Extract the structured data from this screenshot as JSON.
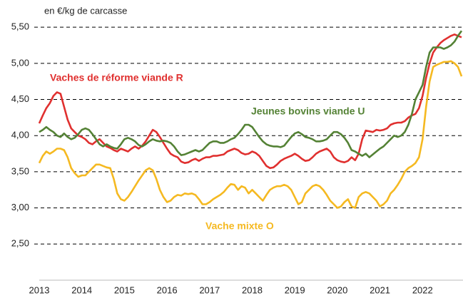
{
  "chart_data": {
    "type": "line",
    "y_label": "en €/kg de carcasse",
    "categories": [
      "2013",
      null,
      null,
      null,
      null,
      null,
      null,
      null,
      null,
      null,
      null,
      null,
      "2014",
      null,
      null,
      null,
      null,
      null,
      null,
      null,
      null,
      null,
      null,
      null,
      "2015",
      null,
      null,
      null,
      null,
      null,
      null,
      null,
      null,
      null,
      null,
      null,
      "2016",
      null,
      null,
      null,
      null,
      null,
      null,
      null,
      null,
      null,
      null,
      null,
      "2017",
      null,
      null,
      null,
      null,
      null,
      null,
      null,
      null,
      null,
      null,
      null,
      "2018",
      null,
      null,
      null,
      null,
      null,
      null,
      null,
      null,
      null,
      null,
      null,
      "2019",
      null,
      null,
      null,
      null,
      null,
      null,
      null,
      null,
      null,
      null,
      null,
      "2020",
      null,
      null,
      null,
      null,
      null,
      null,
      null,
      null,
      null,
      null,
      null,
      "2021",
      null,
      null,
      null,
      null,
      null,
      null,
      null,
      null,
      null,
      null,
      null,
      "2022",
      null,
      null,
      null,
      null,
      null,
      null,
      null,
      null,
      null,
      null,
      null
    ],
    "ylim": [
      2,
      5.6
    ],
    "yticks": [
      {
        "value": 2.5,
        "label": "2,50"
      },
      {
        "value": 3,
        "label": "3,00"
      },
      {
        "value": 3.5,
        "label": "3,50"
      },
      {
        "value": 4,
        "label": "4,00"
      },
      {
        "value": 4.5,
        "label": "4,50"
      },
      {
        "value": 5,
        "label": "5,00"
      },
      {
        "value": 5.5,
        "label": "5,50"
      }
    ],
    "grid": true,
    "series": [
      {
        "name": "Vaches de réforme viande R",
        "color": "#e0302f",
        "values": [
          4.17,
          4.28,
          4.38,
          4.45,
          4.55,
          4.6,
          4.58,
          4.4,
          4.22,
          4.1,
          4.05,
          4.0,
          3.98,
          3.95,
          3.9,
          3.88,
          3.92,
          3.95,
          3.9,
          3.85,
          3.83,
          3.8,
          3.78,
          3.82,
          3.8,
          3.78,
          3.82,
          3.85,
          3.82,
          3.86,
          3.92,
          4.0,
          4.08,
          4.05,
          3.98,
          3.9,
          3.82,
          3.75,
          3.72,
          3.7,
          3.64,
          3.62,
          3.63,
          3.66,
          3.68,
          3.65,
          3.68,
          3.7,
          3.7,
          3.72,
          3.72,
          3.73,
          3.74,
          3.78,
          3.8,
          3.82,
          3.8,
          3.76,
          3.74,
          3.75,
          3.78,
          3.76,
          3.72,
          3.65,
          3.58,
          3.55,
          3.56,
          3.6,
          3.65,
          3.68,
          3.7,
          3.72,
          3.75,
          3.72,
          3.68,
          3.65,
          3.66,
          3.7,
          3.75,
          3.78,
          3.8,
          3.82,
          3.78,
          3.7,
          3.66,
          3.64,
          3.63,
          3.65,
          3.7,
          3.66,
          3.75,
          3.95,
          4.07,
          4.06,
          4.05,
          4.08,
          4.07,
          4.08,
          4.1,
          4.15,
          4.17,
          4.18,
          4.18,
          4.2,
          4.25,
          4.28,
          4.3,
          4.38,
          4.55,
          4.8,
          5.0,
          5.15,
          5.22,
          5.28,
          5.32,
          5.35,
          5.38,
          5.4,
          5.38,
          5.36
        ]
      },
      {
        "name": "Jeunes bovins viande U",
        "color": "#548235",
        "values": [
          4.05,
          4.08,
          4.12,
          4.08,
          4.05,
          4.0,
          3.98,
          4.03,
          3.98,
          3.95,
          3.97,
          4.02,
          4.08,
          4.1,
          4.08,
          4.02,
          3.95,
          3.88,
          3.85,
          3.88,
          3.85,
          3.83,
          3.82,
          3.88,
          3.95,
          3.97,
          3.95,
          3.92,
          3.87,
          3.85,
          3.88,
          3.92,
          3.95,
          3.93,
          3.92,
          3.93,
          3.92,
          3.9,
          3.85,
          3.78,
          3.73,
          3.74,
          3.76,
          3.78,
          3.8,
          3.78,
          3.8,
          3.85,
          3.9,
          3.92,
          3.92,
          3.9,
          3.9,
          3.92,
          3.95,
          3.97,
          4.02,
          4.08,
          4.15,
          4.15,
          4.12,
          4.05,
          3.98,
          3.92,
          3.88,
          3.86,
          3.85,
          3.85,
          3.84,
          3.86,
          3.92,
          3.98,
          4.03,
          4.05,
          4.02,
          3.98,
          3.97,
          3.95,
          3.92,
          3.92,
          3.93,
          3.95,
          4.0,
          4.05,
          4.05,
          4.02,
          3.97,
          3.9,
          3.8,
          3.78,
          3.75,
          3.72,
          3.75,
          3.7,
          3.74,
          3.78,
          3.82,
          3.85,
          3.9,
          3.95,
          4.0,
          3.98,
          4.0,
          4.05,
          4.15,
          4.3,
          4.5,
          4.6,
          4.7,
          4.95,
          5.15,
          5.22,
          5.22,
          5.22,
          5.2,
          5.22,
          5.25,
          5.3,
          5.38,
          5.45
        ]
      },
      {
        "name": "Vache mixte O",
        "color": "#f5b921",
        "values": [
          3.62,
          3.72,
          3.78,
          3.75,
          3.78,
          3.82,
          3.82,
          3.8,
          3.7,
          3.55,
          3.48,
          3.43,
          3.45,
          3.45,
          3.5,
          3.55,
          3.6,
          3.6,
          3.58,
          3.56,
          3.55,
          3.4,
          3.2,
          3.12,
          3.1,
          3.15,
          3.22,
          3.3,
          3.38,
          3.45,
          3.52,
          3.55,
          3.52,
          3.4,
          3.25,
          3.15,
          3.08,
          3.1,
          3.15,
          3.18,
          3.17,
          3.2,
          3.19,
          3.2,
          3.18,
          3.12,
          3.05,
          3.05,
          3.08,
          3.12,
          3.15,
          3.18,
          3.22,
          3.28,
          3.33,
          3.32,
          3.25,
          3.3,
          3.28,
          3.2,
          3.25,
          3.2,
          3.15,
          3.1,
          3.18,
          3.25,
          3.28,
          3.3,
          3.3,
          3.32,
          3.3,
          3.25,
          3.15,
          3.05,
          3.08,
          3.2,
          3.25,
          3.3,
          3.32,
          3.3,
          3.25,
          3.18,
          3.1,
          3.05,
          3.0,
          3.02,
          3.08,
          3.12,
          3.02,
          3.0,
          3.15,
          3.2,
          3.22,
          3.2,
          3.15,
          3.1,
          3.02,
          3.05,
          3.1,
          3.2,
          3.25,
          3.32,
          3.4,
          3.5,
          3.55,
          3.58,
          3.62,
          3.7,
          3.95,
          4.4,
          4.75,
          4.95,
          4.98,
          5.0,
          5.02,
          5.02,
          5.03,
          5.0,
          4.95,
          4.82
        ]
      }
    ]
  }
}
